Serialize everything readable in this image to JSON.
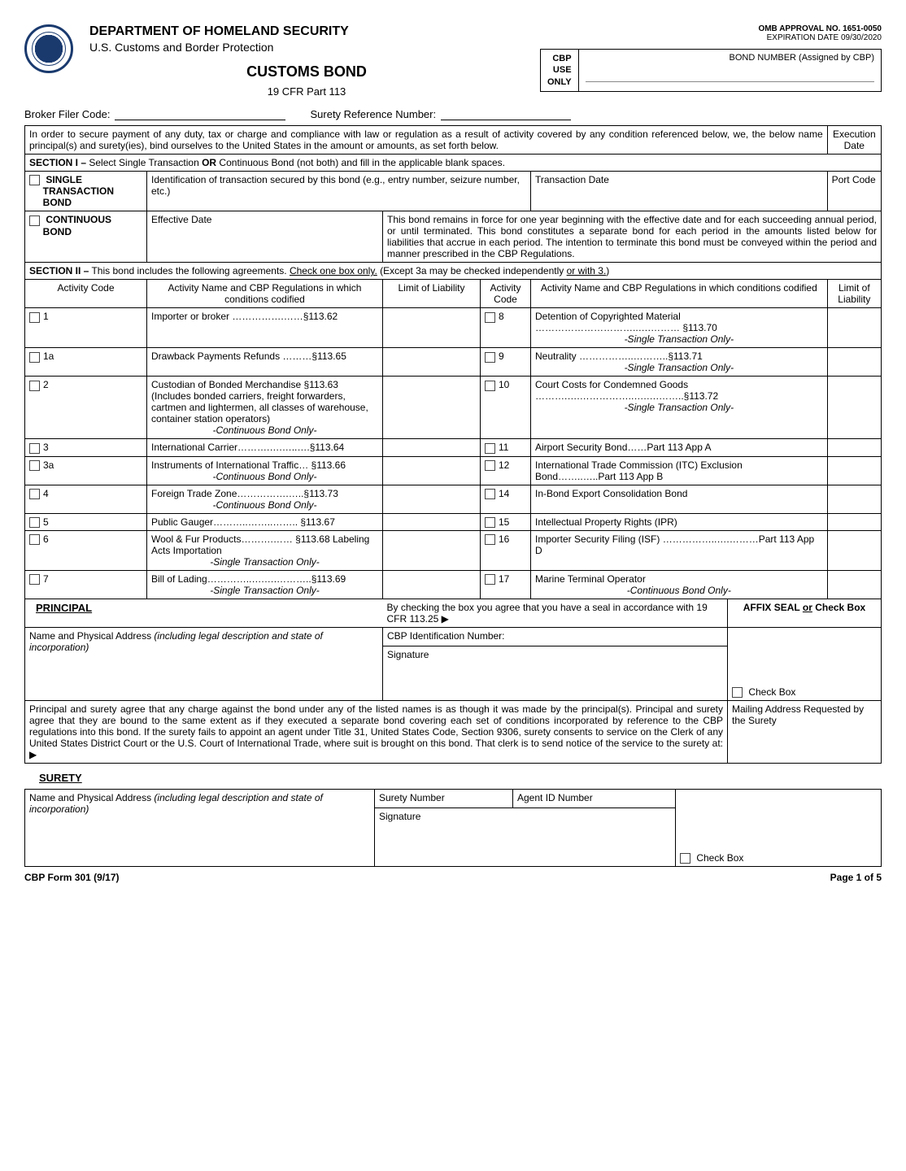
{
  "header": {
    "dept": "DEPARTMENT OF HOMELAND SECURITY",
    "agency": "U.S. Customs and Border Protection",
    "title": "CUSTOMS BOND",
    "cfr": "19 CFR Part 113",
    "omb": "OMB APPROVAL NO. 1651-0050",
    "expiration": "EXPIRATION DATE 09/30/2020",
    "cbp_use": "CBP USE ONLY",
    "bond_number_label": "BOND NUMBER (Assigned by CBP)"
  },
  "filer": {
    "broker_label": "Broker Filer Code:",
    "surety_ref_label": "Surety Reference Number:"
  },
  "intro": {
    "text": "In order to secure payment of any duty, tax or charge and compliance with law or regulation as a result of activity covered by any condition referenced below, we, the below name principal(s) and surety(ies), bind ourselves to the United States in the amount or amounts, as set forth below.",
    "exec_date": "Execution Date"
  },
  "section1": {
    "header": "SECTION I – Select Single Transaction OR Continuous Bond (not both) and fill in the applicable blank spaces.",
    "single_label": "SINGLE TRANSACTION BOND",
    "single_desc": "Identification of transaction secured by this bond (e.g., entry number, seizure number, etc.)",
    "trans_date": "Transaction Date",
    "port_code": "Port Code",
    "cont_label": "CONTINUOUS BOND",
    "eff_date": "Effective Date",
    "cont_desc": "This bond remains in force for one year beginning with the effective date and for each succeeding annual period, or until terminated. This bond constitutes a separate bond for each period in the amounts listed below for liabilities that accrue in each period. The intention to terminate this bond must be conveyed within the period and manner prescribed in the CBP Regulations."
  },
  "section2": {
    "header_prefix": "SECTION II –",
    "header_text": " This bond includes the following agreements. ",
    "header_check": "Check one box only.",
    "header_suffix": " (Except 3a may be checked independently ",
    "header_or": "or with 3.",
    "header_close": ")",
    "col_activity_code": "Activity Code",
    "col_activity_name": "Activity Name and CBP Regulations in which conditions codified",
    "col_limit": "Limit of Liability",
    "left_rows": [
      {
        "code": "1",
        "text": "Importer or broker …………….……§113.62",
        "note": ""
      },
      {
        "code": "1a",
        "text": "Drawback Payments Refunds ………§113.65",
        "note": ""
      },
      {
        "code": "2",
        "text": "Custodian of Bonded Merchandise §113.63 (Includes bonded carriers, freight forwarders, cartmen and lightermen, all classes of warehouse, container station operators)",
        "note": "-Continuous Bond Only-"
      },
      {
        "code": "3",
        "text": "International Carrier……….….…..….§113.64",
        "note": ""
      },
      {
        "code": "3a",
        "text": "Instruments of International Traffic… §113.66",
        "note": "-Continuous Bond Only-"
      },
      {
        "code": "4",
        "text": "Foreign Trade Zone…………….…..§113.73",
        "note": "-Continuous Bond Only-"
      },
      {
        "code": "5",
        "text": "Public Gauger………..……..……..    §113.67",
        "note": ""
      },
      {
        "code": "6",
        "text": "Wool & Fur Products……….……  §113.68 Labeling Acts Importation",
        "note": "-Single Transaction Only-"
      },
      {
        "code": "7",
        "text": "Bill of Lading…………..….….………..§113.69",
        "note": "-Single Transaction Only-"
      }
    ],
    "right_rows": [
      {
        "code": "8",
        "text": "Detention of Copyrighted Material …………………………..….……… §113.70",
        "note": "-Single Transaction Only-"
      },
      {
        "code": "9",
        "text": "Neutrality ……………..………..§113.71",
        "note": "-Single Transaction Only-"
      },
      {
        "code": "10",
        "text": "Court Costs for Condemned Goods ……….….……………..….….……..§113.72",
        "note": "-Single Transaction Only-"
      },
      {
        "code": "11",
        "text": "Airport Security Bond……Part 113 App A",
        "note": ""
      },
      {
        "code": "12",
        "text": "International Trade Commission (ITC) Exclusion Bond……..…..Part 113 App B",
        "note": ""
      },
      {
        "code": "14",
        "text": "In-Bond Export Consolidation Bond",
        "note": ""
      },
      {
        "code": "15",
        "text": "Intellectual Property Rights (IPR)",
        "note": ""
      },
      {
        "code": "16",
        "text": "Importer Security Filing (ISF) ……………..….………Part 113 App D",
        "note": ""
      },
      {
        "code": "17",
        "text": "Marine Terminal Operator",
        "note": "-Continuous Bond Only-"
      }
    ]
  },
  "principal": {
    "label": "PRINCIPAL",
    "seal_text": "By checking the box you agree that you have a seal in accordance with 19 CFR 113.25 ▶",
    "affix": "AFFIX SEAL ",
    "affix_or": "or",
    "affix_suffix": " Check Box",
    "name_addr": "Name and Physical Address ",
    "name_addr_italic": "(including legal description and state of incorporation)",
    "cbp_id": "CBP Identification Number:",
    "signature": "Signature",
    "checkbox_label": "Check Box",
    "agreement": "Principal and surety agree that any charge against the bond under any of the listed names is as though it was made by the principal(s). Principal and surety agree that they are bound to the same extent as if they executed a separate bond covering each set of conditions incorporated by reference to the CBP regulations into this bond. If the surety fails to appoint an agent under Title 31, United States Code, Section 9306, surety consents to service on the Clerk of any United States District Court or the U.S. Court of International Trade, where suit is brought on this bond. That clerk is to send notice of the service to the surety at: ▶",
    "mailing": "Mailing Address Requested by the Surety"
  },
  "surety": {
    "label": "SURETY",
    "surety_number": "Surety Number",
    "agent_id": "Agent ID Number",
    "signature": "Signature",
    "checkbox_label": "Check Box"
  },
  "footer": {
    "form": "CBP Form 301 (9/17)",
    "page": "Page 1 of 5"
  }
}
